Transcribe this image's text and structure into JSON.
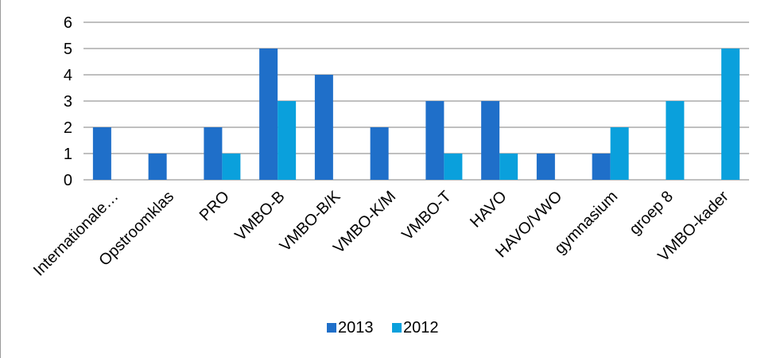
{
  "chart_data": {
    "type": "bar",
    "title": "",
    "xlabel": "",
    "ylabel": "",
    "categories": [
      "Internationale…",
      "Opstroomklas",
      "PRO",
      "VMBO-B",
      "VMBO-B/K",
      "VMBO-K/M",
      "VMBO-T",
      "HAVO",
      "HAVO/VWO",
      "gymnasium",
      "groep 8",
      "VMBO-kader"
    ],
    "series": [
      {
        "name": "2013",
        "color": "#1f6fc9",
        "values": [
          2,
          1,
          2,
          5,
          4,
          2,
          3,
          3,
          1,
          1,
          0,
          0
        ]
      },
      {
        "name": "2012",
        "color": "#0aa0dc",
        "values": [
          0,
          0,
          1,
          3,
          0,
          0,
          1,
          1,
          0,
          2,
          3,
          5
        ]
      }
    ],
    "ylim": [
      0,
      6
    ],
    "yticks": [
      0,
      1,
      2,
      3,
      4,
      5,
      6
    ],
    "grid": true,
    "legend": "bottom"
  }
}
